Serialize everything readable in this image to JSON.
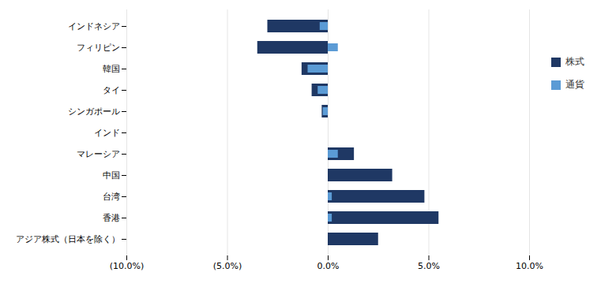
{
  "chart_data": {
    "type": "bar",
    "orientation": "horizontal",
    "stacked": false,
    "categories": [
      "インドネシア",
      "フィリピン",
      "韓国",
      "タイ",
      "シンガポール",
      "インド",
      "マレーシア",
      "中国",
      "台湾",
      "香港",
      "アジア株式（日本を除く）"
    ],
    "series": [
      {
        "name": "株式",
        "color": "#1f3864",
        "values": [
          -3.0,
          -3.5,
          -1.3,
          -0.8,
          -0.3,
          0.0,
          1.3,
          3.2,
          4.8,
          5.5,
          2.5
        ]
      },
      {
        "name": "通貨",
        "color": "#5b9bd5",
        "values": [
          -0.4,
          0.5,
          -1.0,
          -0.5,
          -0.25,
          0.0,
          0.5,
          0.0,
          0.2,
          0.2,
          0.0
        ]
      }
    ],
    "xlim": [
      -10.0,
      10.0
    ],
    "xticks": [
      {
        "value": -10.0,
        "label": "(10.0%)"
      },
      {
        "value": -5.0,
        "label": "(5.0%)"
      },
      {
        "value": 0.0,
        "label": "0.0%"
      },
      {
        "value": 5.0,
        "label": "5.0%"
      },
      {
        "value": 10.0,
        "label": "10.0%"
      }
    ],
    "grid": true,
    "legend": "right"
  }
}
